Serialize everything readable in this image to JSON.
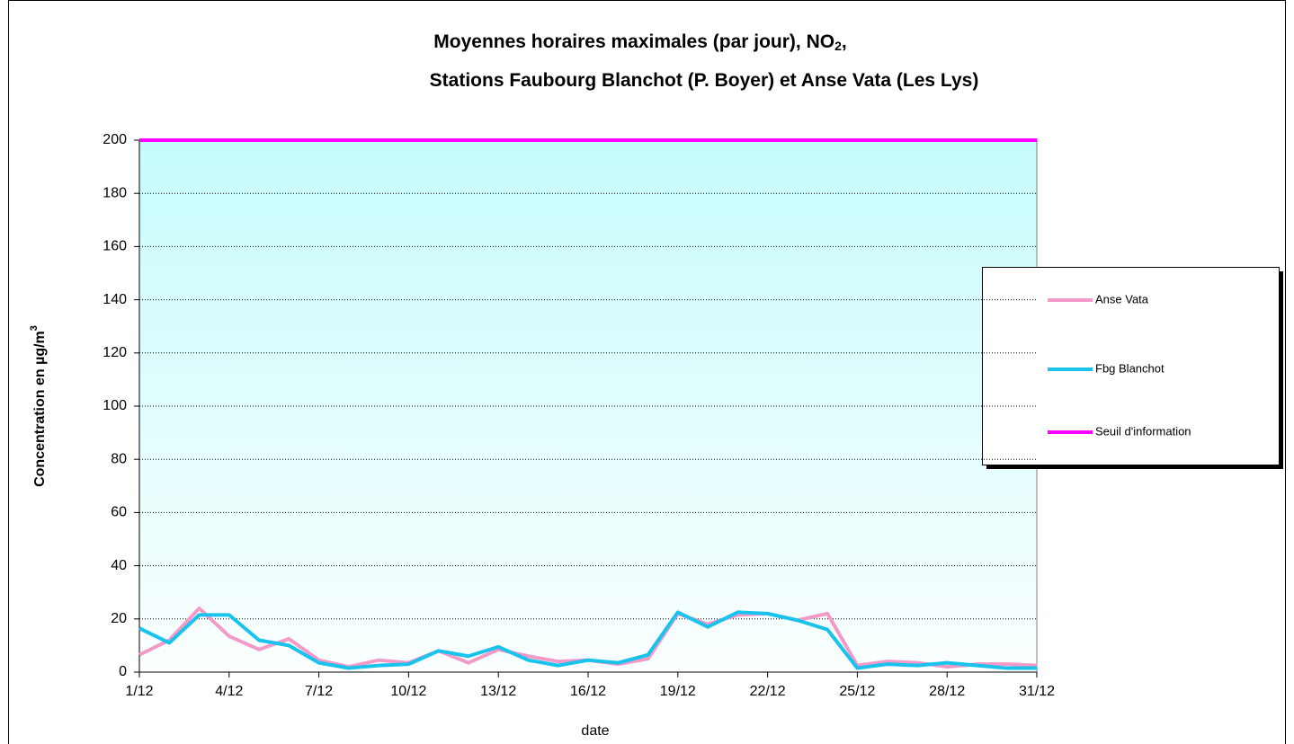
{
  "chart_data": {
    "type": "line",
    "title": [
      [
        "Moyennes horaires maximales (par jour), NO",
        "2",
        ","
      ],
      [
        "Stations Faubourg Blanchot (P. Boyer) et Anse Vata (Les Lys)"
      ]
    ],
    "y_label": [
      "Concentration en µg/m",
      "3"
    ],
    "x_label": "date",
    "categories": [
      "1/12",
      null,
      null,
      "4/12",
      null,
      null,
      "7/12",
      null,
      null,
      "10/12",
      null,
      null,
      "13/12",
      null,
      null,
      "16/12",
      null,
      null,
      "19/12",
      null,
      null,
      "22/12",
      null,
      null,
      "25/12",
      null,
      null,
      "28/12",
      null,
      null,
      "31/12"
    ],
    "series": [
      {
        "name": "Anse Vata",
        "color": "#f49ac8",
        "values": [
          6.5,
          12,
          24,
          13.5,
          8.5,
          12.5,
          4.5,
          2,
          4.5,
          3.5,
          8,
          3.5,
          8.5,
          6,
          4,
          4.5,
          3,
          5,
          22,
          18,
          21.5,
          22,
          19.5,
          22,
          2.5,
          4,
          3.5,
          2,
          3,
          3,
          2.5
        ]
      },
      {
        "name": "Fbg Blanchot",
        "color": "#19c3ec",
        "values": [
          16.5,
          11,
          21.5,
          21.5,
          12,
          10,
          3.5,
          1.5,
          2.5,
          3,
          8,
          6,
          9.5,
          4.5,
          2.5,
          4.5,
          3.5,
          6.5,
          22.5,
          17,
          22.5,
          22,
          19.5,
          16,
          1.5,
          3,
          2.5,
          3.5,
          2.5,
          1.5,
          1.5
        ]
      },
      {
        "name": "Seuil d'information",
        "color": "#ff00ff",
        "values": [
          200,
          200,
          200,
          200,
          200,
          200,
          200,
          200,
          200,
          200,
          200,
          200,
          200,
          200,
          200,
          200,
          200,
          200,
          200,
          200,
          200,
          200,
          200,
          200,
          200,
          200,
          200,
          200,
          200,
          200,
          200
        ]
      }
    ],
    "ylim": [
      0,
      200
    ],
    "yticks": [
      0,
      20,
      40,
      60,
      80,
      100,
      120,
      140,
      160,
      180,
      200
    ],
    "grid": true
  }
}
